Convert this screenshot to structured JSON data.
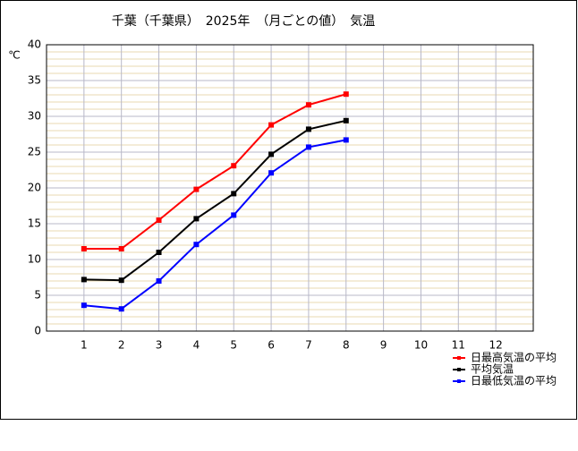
{
  "chart_data": {
    "type": "line",
    "title": "千葉（千葉県）　2025年　（月ごとの値）　気温",
    "y_label": "℃",
    "x": [
      1,
      2,
      3,
      4,
      5,
      6,
      7,
      8
    ],
    "xlim": [
      0,
      13
    ],
    "xticks": [
      1,
      2,
      3,
      4,
      5,
      6,
      7,
      8,
      9,
      10,
      11,
      12
    ],
    "ylim": [
      0,
      40
    ],
    "yticks": [
      0,
      5,
      10,
      15,
      20,
      25,
      30,
      35,
      40
    ],
    "grid": true,
    "minor_grid_step": 1,
    "legend": "bottom-right",
    "series": [
      {
        "name": "日最高気温の平均",
        "color": "#ff0000",
        "values": [
          11.5,
          11.5,
          15.5,
          19.8,
          23.1,
          28.8,
          31.6,
          33.1
        ]
      },
      {
        "name": "平均気温",
        "color": "#000000",
        "values": [
          7.2,
          7.1,
          11.0,
          15.7,
          19.2,
          24.7,
          28.2,
          29.4
        ]
      },
      {
        "name": "日最低気温の平均",
        "color": "#0000ff",
        "values": [
          3.6,
          3.1,
          7.0,
          12.1,
          16.2,
          22.1,
          25.7,
          26.7
        ]
      }
    ]
  }
}
